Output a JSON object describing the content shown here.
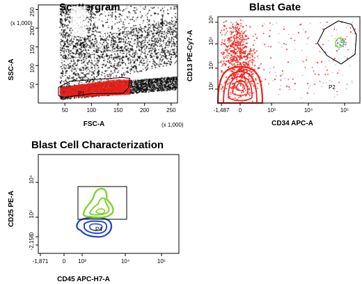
{
  "chart_data": [
    {
      "id": "scattergram",
      "type": "scatter",
      "title": "Scattergram",
      "xlabel": "FSC-A",
      "ylabel": "SSC-A",
      "x_multiplier_label": "(x 1,000)",
      "y_multiplier_label": "(x 1,000)",
      "xlim": [
        0,
        262
      ],
      "ylim": [
        0,
        262
      ],
      "x_ticks": [
        "50",
        "100",
        "150",
        "200",
        "250"
      ],
      "x_tick_values": [
        50,
        100,
        150,
        200,
        250
      ],
      "y_ticks": [
        "50",
        "100",
        "150",
        "200",
        "250"
      ],
      "y_tick_values": [
        50,
        100,
        150,
        200,
        250
      ],
      "gate": {
        "name": "P1",
        "polygon": [
          [
            38,
            42
          ],
          [
            60,
            58
          ],
          [
            158,
            68
          ],
          [
            172,
            66
          ],
          [
            170,
            42
          ],
          [
            160,
            26
          ],
          [
            100,
            25
          ],
          [
            48,
            15
          ],
          [
            38,
            20
          ]
        ]
      },
      "series": [
        {
          "color": "#000000",
          "role": "all events"
        },
        {
          "color": "#e8231b",
          "role": "gated P1 events"
        }
      ]
    },
    {
      "id": "blast-gate",
      "type": "scatter",
      "title": "Blast Gate",
      "xlabel": "CD34 APC-A",
      "ylabel": "CD13 PE-Cy7-A",
      "x_ticks": [
        "-1,487",
        "0",
        "10³",
        "10⁴",
        "10⁵"
      ],
      "y_ticks": [
        "10²",
        "10³",
        "10⁴",
        "10⁵"
      ],
      "gate": {
        "name": "P2"
      },
      "series": [
        {
          "color": "#e8231b",
          "role": "events with contours"
        },
        {
          "color": "#3a56c8",
          "role": "events in gate"
        },
        {
          "color": "#7fd42a",
          "role": "contour in gate"
        }
      ]
    },
    {
      "id": "blast-cell-characterization",
      "type": "scatter",
      "title": "Blast Cell Characterization",
      "xlabel": "CD45 APC-H7-A",
      "ylabel": "CD25 PE-A",
      "x_ticks": [
        "-1,871",
        "0",
        "10³",
        "10⁴",
        "10⁵"
      ],
      "y_ticks": [
        "-2,156",
        "0",
        "10³",
        "10⁴"
      ],
      "gate": {
        "name": "P4"
      },
      "series": [
        {
          "color": "#7fd42a",
          "role": "CD25 positive population"
        },
        {
          "color": "#2a47c8",
          "role": "CD25 low population"
        }
      ]
    }
  ]
}
